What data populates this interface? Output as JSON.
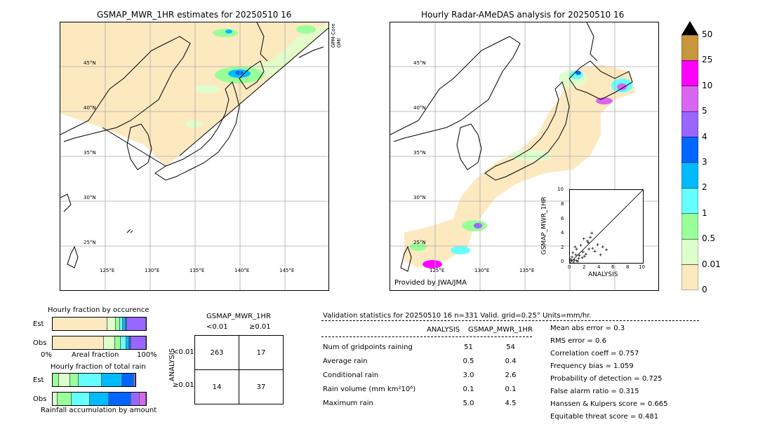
{
  "left_map": {
    "title": "GSMAP_MWR_1HR estimates for 20250510 16",
    "sensor_label": "GPM-Core GMI",
    "lat_labels": [
      "45°N",
      "40°N",
      "35°N",
      "30°N",
      "25°N"
    ],
    "lon_labels": [
      "125°E",
      "130°E",
      "135°E",
      "140°E",
      "145°E"
    ]
  },
  "right_map": {
    "title": "Hourly Radar-AMeDAS analysis for 20250510 16",
    "lat_labels": [
      "45°N",
      "40°N",
      "35°N",
      "30°N",
      "25°N"
    ],
    "lon_labels": [
      "125°E",
      "130°E",
      "135°E"
    ],
    "credit": "Provided by JWA/JMA"
  },
  "scatter": {
    "xlabel": "ANALYSIS",
    "ylabel": "GSMAP_MWR_1HR",
    "ticks": [
      "0",
      "2",
      "4",
      "6",
      "8",
      "10"
    ],
    "ytick_labels": [
      "0",
      "2",
      "4",
      "6",
      "8",
      "10"
    ],
    "points": [
      [
        0.2,
        0.3
      ],
      [
        0.5,
        0.1
      ],
      [
        0.8,
        1.1
      ],
      [
        1.2,
        0.6
      ],
      [
        0.3,
        0.8
      ],
      [
        1.8,
        1.5
      ],
      [
        2.2,
        1.2
      ],
      [
        2.5,
        2.8
      ],
      [
        3.1,
        2.0
      ],
      [
        0.9,
        1.9
      ],
      [
        1.5,
        2.4
      ],
      [
        2.8,
        3.5
      ],
      [
        3.4,
        1.6
      ],
      [
        4.2,
        1.1
      ],
      [
        0.6,
        0.4
      ],
      [
        1.1,
        0.2
      ],
      [
        2.0,
        0.9
      ],
      [
        0.4,
        1.4
      ],
      [
        3.0,
        4.1
      ],
      [
        2.4,
        3.0
      ],
      [
        1.3,
        1.0
      ],
      [
        0.7,
        2.2
      ],
      [
        3.8,
        2.5
      ],
      [
        5.0,
        1.8
      ],
      [
        0.1,
        0.5
      ],
      [
        1.7,
        0.7
      ],
      [
        2.6,
        1.9
      ],
      [
        0.9,
        0.3
      ],
      [
        4.5,
        2.2
      ],
      [
        1.9,
        3.3
      ]
    ]
  },
  "colorbar": {
    "labels": [
      "50",
      "25",
      "10",
      "5",
      "4",
      "3",
      "2",
      "1",
      "0.5",
      "0.01",
      "0"
    ],
    "colors": [
      "#c8963c",
      "#ff00ff",
      "#d966f0",
      "#9966ff",
      "#0066ff",
      "#00bbff",
      "#66ffff",
      "#99ff99",
      "#ddffcc",
      "#fde9c0"
    ],
    "extend_color": "#000000"
  },
  "occurrence": {
    "title": "Hourly fraction by occurence",
    "rows": [
      "Est",
      "Obs"
    ],
    "xaxis_left": "0%",
    "xaxis_mid": "Areal fraction",
    "xaxis_right": "100%",
    "est_fracs": [
      0.59,
      0.09,
      0.04,
      0.03,
      0.03,
      0.02
    ],
    "obs_fracs": [
      0.55,
      0.12,
      0.06,
      0.06,
      0.03,
      0.02
    ]
  },
  "total_rain": {
    "title": "Hourly fraction of total rain",
    "rows": [
      "Est",
      "Obs"
    ],
    "footer": "Rainfall accumulation by amount"
  },
  "contingency": {
    "title": "GSMAP_MWR_1HR",
    "col_labels": [
      "<0.01",
      "≥0.01"
    ],
    "side_label": "ANALYSIS",
    "row_labels": [
      "<0.01",
      "≥0.01"
    ],
    "cells": [
      [
        "263",
        "17"
      ],
      [
        "14",
        "37"
      ]
    ]
  },
  "validation": {
    "header": "Validation statistics for 20250510 16  n=331 Valid. grid=0.25° Units=mm/hr.",
    "col_analysis": "ANALYSIS",
    "col_gsmap": "GSMAP_MWR_1HR",
    "rows": [
      {
        "label": "Num of gridpoints raining",
        "a": "51",
        "g": "54"
      },
      {
        "label": "Average rain",
        "a": "0.5",
        "g": "0.4"
      },
      {
        "label": "Conditional rain",
        "a": "3.0",
        "g": "2.6"
      },
      {
        "label": "Rain volume (mm km²10⁶)",
        "a": "0.1",
        "g": "0.1"
      },
      {
        "label": "Maximum rain",
        "a": "5.0",
        "g": "4.5"
      }
    ],
    "scores": [
      "Mean abs error =    0.3",
      "RMS error =    0.6",
      "Correlation coeff =  0.757",
      "Frequency bias =  1.059",
      "Probability of detection =  0.725",
      "False alarm ratio =  0.315",
      "Hanssen & Kuipers score =  0.665",
      "Equitable threat score =  0.481"
    ]
  }
}
